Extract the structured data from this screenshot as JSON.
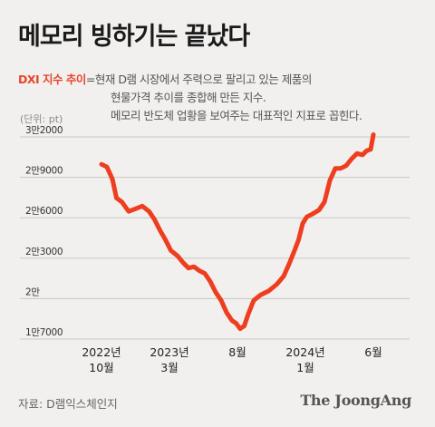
{
  "header": {
    "title": "메모리 빙하기는 끝났다"
  },
  "description": {
    "term": "DXI 지수 추이",
    "lines": [
      "=현재 D램 시장에서 주력으로 팔리고 있는 제품의",
      "현물가격 추이를 종합해 만든 지수.",
      "메모리 반도체 업황을 보여주는 대표적인 지표로 꼽힌다."
    ]
  },
  "footer": {
    "source": "자료: D램익스체인지",
    "brand": "The JoongAng"
  },
  "chart_data": {
    "type": "line",
    "unit_label": "(단위: pt)",
    "ylim": [
      17000,
      32000
    ],
    "yticks": [
      {
        "value": 32000,
        "label": "3만2000"
      },
      {
        "value": 29000,
        "label": "2만9000"
      },
      {
        "value": 26000,
        "label": "2만6000"
      },
      {
        "value": 23000,
        "label": "2만3000"
      },
      {
        "value": 20000,
        "label": "2만"
      },
      {
        "value": 17000,
        "label": "1만7000"
      }
    ],
    "xlim": [
      0,
      20
    ],
    "xticks": [
      {
        "value": 0,
        "lines": [
          "2022년",
          "10월"
        ]
      },
      {
        "value": 5,
        "lines": [
          "2023년",
          "3월"
        ]
      },
      {
        "value": 10,
        "lines": [
          "8월"
        ]
      },
      {
        "value": 15,
        "lines": [
          "2024년",
          "1월"
        ]
      },
      {
        "value": 20,
        "lines": [
          "6월"
        ]
      }
    ],
    "grid": true,
    "series": [
      {
        "color": "#ee3d1f",
        "x": [
          0,
          0.4,
          0.8,
          1.1,
          1.5,
          2.0,
          2.5,
          3.0,
          3.5,
          3.9,
          4.3,
          4.7,
          5.1,
          5.6,
          6.0,
          6.4,
          6.8,
          7.2,
          7.6,
          8.0,
          8.4,
          8.8,
          9.2,
          9.6,
          9.9,
          10.2,
          10.5,
          10.8,
          11.2,
          11.7,
          12.3,
          12.9,
          13.4,
          13.8,
          14.2,
          14.5,
          14.8,
          15.1,
          15.5,
          16.0,
          16.4,
          16.8,
          17.2,
          17.6,
          18.0,
          18.4,
          18.8,
          19.2,
          19.5,
          19.8,
          20.0
        ],
        "y": [
          29700,
          29500,
          28600,
          27200,
          26900,
          26200,
          26400,
          26600,
          26200,
          25600,
          24800,
          24100,
          23300,
          22900,
          22400,
          22000,
          22100,
          21800,
          21600,
          21000,
          20200,
          19600,
          18700,
          18100,
          17900,
          17500,
          17700,
          18600,
          19600,
          20000,
          20300,
          20800,
          21400,
          22300,
          23300,
          24100,
          25300,
          25800,
          26000,
          26300,
          26900,
          28500,
          29400,
          29400,
          29600,
          30100,
          30500,
          30400,
          30700,
          30800,
          31900
        ]
      }
    ]
  }
}
